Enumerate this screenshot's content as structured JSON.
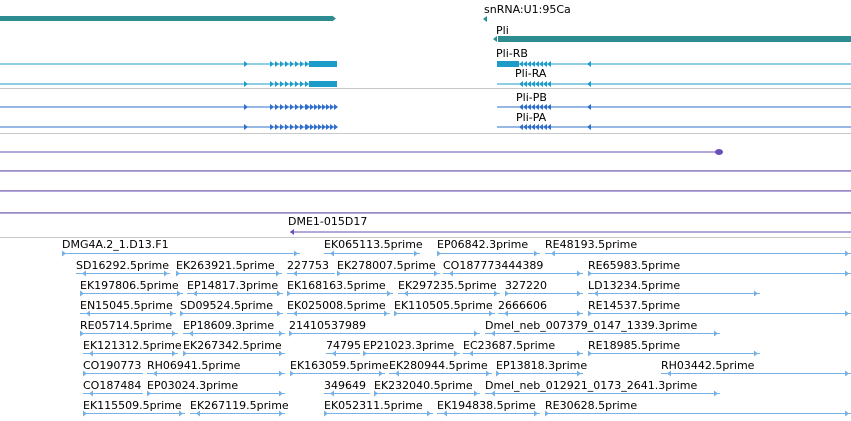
{
  "colors": {
    "gene_teal": "#2c8c8f",
    "transcript": "#1d9cc9",
    "transcript_dark": "#2f6fc9",
    "purple": "#6a4fb8",
    "est_arrow": "#76b2e6",
    "track_border": "#c8c8c8"
  },
  "tracks": {
    "gene_label_snrna": "snRNA:U1:95Ca",
    "gene_label_pli": "Pli",
    "transcripts": [
      "Pli-RB",
      "Pli-RA",
      "Pli-PB",
      "Pli-PA"
    ],
    "clone_label": "DME1-015D17"
  },
  "est_labels": [
    "DMG4A.2_1.D13.F1",
    "EK065113.5prime",
    "EP06842.3prime",
    "RE48193.5prime",
    "SD16292.5prime",
    "EK263921.5prime",
    "227753",
    "EK278007.5prime",
    "CO187773444389",
    "RE65983.5prime",
    "EK197806.5prime",
    "EP14817.3prime",
    "EK168163.5prime",
    "EK297235.5prime",
    "327220",
    "LD13234.5prime",
    "EN15045.5prime",
    "SD09524.5prime",
    "EK025008.5prime",
    "EK110505.5prime",
    "2666606",
    "RE14537.5prime",
    "RE05714.5prime",
    "EP18609.3prime",
    "21410537989",
    "Dmel_neb_007379_0147_1339.3prime",
    "EK121312.5prime",
    "EK267342.5prime",
    "74795",
    "EP21023.3prime",
    "EC23687.5prime",
    "RE18985.5prime",
    "CO190773",
    "RH06941.5prime",
    "EK163059.5prime",
    "EK280944.5prime",
    "EP13818.3prime",
    "RH03442.5prime",
    "CO187484",
    "EP03024.3prime",
    "349649",
    "EK232040.5prime",
    "Dmel_neb_012921_0173_2641.3prime",
    "EK115509.5prime",
    "EK267119.5prime",
    "EK052311.5prime",
    "EK194838.5prime",
    "RE30628.5prime"
  ]
}
